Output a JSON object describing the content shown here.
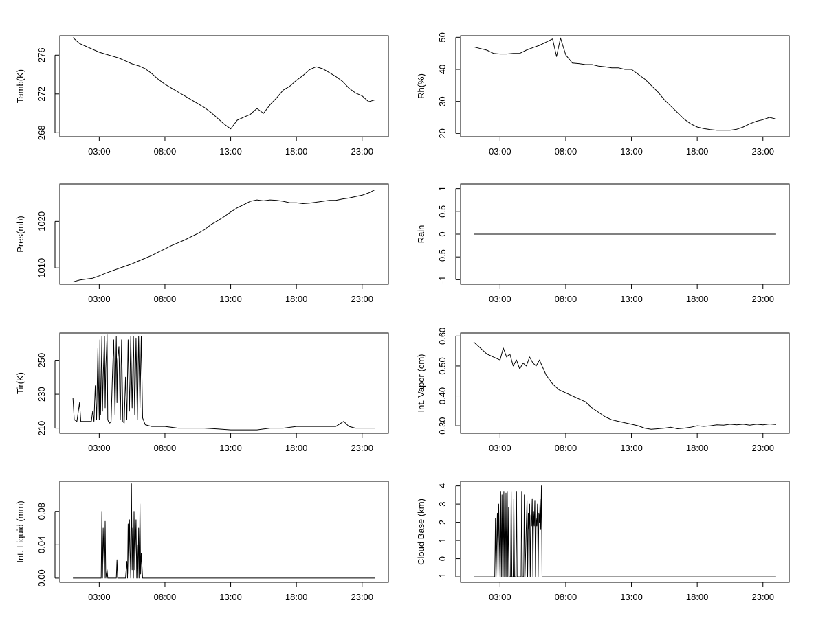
{
  "chart_data": [
    {
      "type": "line",
      "ylabel": "Tamb(K)",
      "ylim": [
        267.6,
        278.0
      ],
      "yticks": [
        268,
        272,
        276
      ],
      "x_tick_labels": [
        "03:00",
        "08:00",
        "13:00",
        "18:00",
        "23:00"
      ],
      "x_ticks": [
        3,
        8,
        13,
        18,
        23
      ],
      "xlim": [
        0,
        25
      ],
      "x": [
        1.0,
        1.5,
        2.0,
        2.5,
        3.0,
        3.5,
        4.0,
        4.5,
        5.0,
        5.5,
        6.0,
        6.5,
        7.0,
        7.5,
        8.0,
        8.5,
        9.0,
        9.5,
        10.0,
        10.5,
        11.0,
        11.5,
        12.0,
        12.5,
        13.0,
        13.5,
        14.0,
        14.5,
        15.0,
        15.5,
        16.0,
        16.5,
        17.0,
        17.5,
        18.0,
        18.5,
        19.0,
        19.5,
        20.0,
        20.5,
        21.0,
        21.5,
        22.0,
        22.5,
        23.0,
        23.5,
        24.0
      ],
      "y": [
        277.8,
        277.2,
        276.9,
        276.6,
        276.3,
        276.1,
        275.9,
        275.7,
        275.4,
        275.1,
        274.9,
        274.6,
        274.1,
        273.5,
        273.0,
        272.6,
        272.2,
        271.8,
        271.4,
        271.0,
        270.6,
        270.1,
        269.5,
        268.9,
        268.4,
        269.3,
        269.6,
        269.9,
        270.5,
        270.0,
        270.9,
        271.6,
        272.4,
        272.8,
        273.4,
        273.9,
        274.5,
        274.8,
        274.6,
        274.2,
        273.8,
        273.3,
        272.6,
        272.1,
        271.8,
        271.2,
        271.4
      ]
    },
    {
      "type": "line",
      "ylabel": "Rh(%)",
      "ylim": [
        19,
        50.5
      ],
      "yticks": [
        20,
        30,
        40,
        50
      ],
      "x_tick_labels": [
        "03:00",
        "08:00",
        "13:00",
        "18:00",
        "23:00"
      ],
      "x_ticks": [
        3,
        8,
        13,
        18,
        23
      ],
      "xlim": [
        0,
        25
      ],
      "x": [
        1.0,
        1.5,
        2.0,
        2.5,
        3.0,
        3.5,
        4.0,
        4.5,
        5.0,
        5.5,
        6.0,
        6.5,
        7.0,
        7.3,
        7.6,
        8.0,
        8.5,
        9.0,
        9.5,
        10.0,
        10.5,
        11.0,
        11.5,
        12.0,
        12.5,
        13.0,
        13.5,
        14.0,
        14.5,
        15.0,
        15.5,
        16.0,
        16.5,
        17.0,
        17.5,
        18.0,
        18.5,
        19.0,
        19.5,
        20.0,
        20.5,
        21.0,
        21.5,
        22.0,
        22.5,
        23.0,
        23.5,
        24.0
      ],
      "y": [
        47.0,
        46.5,
        46.0,
        45.0,
        44.8,
        44.8,
        45.0,
        45.0,
        46.0,
        46.8,
        47.5,
        48.5,
        49.5,
        44.0,
        49.8,
        44.5,
        42.0,
        41.8,
        41.5,
        41.5,
        41.0,
        40.8,
        40.5,
        40.5,
        40.0,
        40.0,
        38.5,
        37.0,
        35.0,
        33.0,
        30.5,
        28.5,
        26.5,
        24.5,
        23.0,
        22.0,
        21.5,
        21.2,
        21.0,
        21.0,
        21.0,
        21.3,
        22.0,
        23.0,
        23.8,
        24.3,
        25.0,
        24.5
      ]
    },
    {
      "type": "line",
      "ylabel": "Pres(mb)",
      "ylim": [
        1006.5,
        1028.0
      ],
      "yticks": [
        1010,
        1020
      ],
      "x_tick_labels": [
        "03:00",
        "08:00",
        "13:00",
        "18:00",
        "23:00"
      ],
      "x_ticks": [
        3,
        8,
        13,
        18,
        23
      ],
      "xlim": [
        0,
        25
      ],
      "x": [
        1.0,
        1.5,
        2.0,
        2.5,
        3.0,
        3.5,
        4.0,
        4.5,
        5.0,
        5.5,
        6.0,
        6.5,
        7.0,
        7.5,
        8.0,
        8.5,
        9.0,
        9.5,
        10.0,
        10.5,
        11.0,
        11.5,
        12.0,
        12.5,
        13.0,
        13.5,
        14.0,
        14.5,
        15.0,
        15.5,
        16.0,
        16.5,
        17.0,
        17.5,
        18.0,
        18.5,
        19.0,
        19.5,
        20.0,
        20.5,
        21.0,
        21.5,
        22.0,
        22.5,
        23.0,
        23.5,
        24.0
      ],
      "y": [
        1007.0,
        1007.4,
        1007.6,
        1007.8,
        1008.3,
        1008.9,
        1009.4,
        1009.9,
        1010.4,
        1010.9,
        1011.5,
        1012.1,
        1012.7,
        1013.4,
        1014.1,
        1014.8,
        1015.4,
        1016.0,
        1016.7,
        1017.4,
        1018.2,
        1019.3,
        1020.1,
        1021.0,
        1022.0,
        1022.9,
        1023.6,
        1024.3,
        1024.6,
        1024.4,
        1024.6,
        1024.5,
        1024.3,
        1024.0,
        1024.0,
        1023.8,
        1023.9,
        1024.1,
        1024.3,
        1024.5,
        1024.5,
        1024.8,
        1025.0,
        1025.3,
        1025.6,
        1026.1,
        1026.8
      ]
    },
    {
      "type": "line",
      "ylabel": "Rain",
      "ylim": [
        -1.1,
        1.1
      ],
      "yticks": [
        -1.0,
        -0.5,
        0.0,
        0.5,
        1.0
      ],
      "x_tick_labels": [
        "03:00",
        "08:00",
        "13:00",
        "18:00",
        "23:00"
      ],
      "x_ticks": [
        3,
        8,
        13,
        18,
        23
      ],
      "xlim": [
        0,
        25
      ],
      "x": [
        1.0,
        24.0
      ],
      "y": [
        0.0,
        0.0
      ]
    },
    {
      "type": "line",
      "ylabel": "Tir(K)",
      "ylim": [
        207,
        266
      ],
      "yticks": [
        210,
        230,
        250
      ],
      "x_tick_labels": [
        "03:00",
        "08:00",
        "13:00",
        "18:00",
        "23:00"
      ],
      "x_ticks": [
        3,
        8,
        13,
        18,
        23
      ],
      "xlim": [
        0,
        25
      ],
      "x": [
        1.0,
        1.1,
        1.3,
        1.5,
        1.6,
        1.8,
        2.0,
        2.2,
        2.4,
        2.5,
        2.6,
        2.7,
        2.8,
        2.9,
        3.0,
        3.05,
        3.1,
        3.2,
        3.25,
        3.3,
        3.4,
        3.45,
        3.5,
        3.6,
        3.65,
        3.7,
        3.8,
        3.9,
        4.0,
        4.1,
        4.2,
        4.3,
        4.35,
        4.4,
        4.5,
        4.6,
        4.7,
        4.8,
        4.9,
        5.0,
        5.1,
        5.2,
        5.3,
        5.4,
        5.5,
        5.6,
        5.7,
        5.8,
        5.9,
        6.0,
        6.1,
        6.2,
        6.3,
        6.5,
        7.0,
        7.5,
        8.0,
        9.0,
        10.0,
        11.0,
        12.0,
        13.0,
        14.0,
        15.0,
        16.0,
        17.0,
        18.0,
        19.0,
        20.0,
        21.0,
        21.6,
        22.0,
        22.5,
        23.0,
        24.0
      ],
      "y": [
        228,
        215,
        214,
        225,
        214,
        214,
        214,
        214,
        214,
        220,
        214,
        235,
        215,
        257,
        215,
        262,
        218,
        264,
        220,
        240,
        264,
        222,
        245,
        265,
        215,
        214,
        213,
        214,
        240,
        262,
        218,
        264,
        225,
        250,
        258,
        215,
        262,
        214,
        213,
        240,
        215,
        262,
        220,
        264,
        222,
        264,
        218,
        263,
        215,
        264,
        222,
        264,
        216,
        212,
        211,
        211,
        211,
        210,
        210,
        210,
        209.5,
        209,
        209,
        209,
        210,
        210,
        211,
        211,
        211,
        211,
        214,
        211,
        210,
        210,
        210
      ]
    },
    {
      "type": "line",
      "ylabel": "Int. Vapor (cm)",
      "ylim": [
        0.275,
        0.61
      ],
      "yticks": [
        0.3,
        0.4,
        0.5,
        0.6
      ],
      "ytick_labels": [
        "0.30",
        "0.40",
        "0.50",
        "0.60"
      ],
      "x_tick_labels": [
        "03:00",
        "08:00",
        "13:00",
        "18:00",
        "23:00"
      ],
      "x_ticks": [
        3,
        8,
        13,
        18,
        23
      ],
      "xlim": [
        0,
        25
      ],
      "x": [
        1.0,
        1.5,
        2.0,
        2.5,
        3.0,
        3.25,
        3.5,
        3.75,
        4.0,
        4.25,
        4.5,
        4.75,
        5.0,
        5.25,
        5.5,
        5.75,
        6.0,
        6.5,
        7.0,
        7.5,
        8.0,
        8.5,
        9.0,
        9.5,
        10.0,
        10.5,
        11.0,
        11.5,
        12.0,
        12.5,
        13.0,
        13.5,
        14.0,
        14.5,
        15.0,
        15.5,
        16.0,
        16.5,
        17.0,
        17.5,
        18.0,
        18.5,
        19.0,
        19.5,
        20.0,
        20.5,
        21.0,
        21.5,
        22.0,
        22.5,
        23.0,
        23.5,
        24.0
      ],
      "y": [
        0.58,
        0.56,
        0.54,
        0.53,
        0.52,
        0.56,
        0.53,
        0.54,
        0.5,
        0.52,
        0.49,
        0.51,
        0.5,
        0.53,
        0.51,
        0.5,
        0.52,
        0.47,
        0.44,
        0.42,
        0.41,
        0.4,
        0.39,
        0.38,
        0.36,
        0.345,
        0.33,
        0.32,
        0.315,
        0.31,
        0.305,
        0.3,
        0.292,
        0.288,
        0.29,
        0.292,
        0.295,
        0.29,
        0.292,
        0.295,
        0.3,
        0.298,
        0.3,
        0.303,
        0.302,
        0.305,
        0.303,
        0.305,
        0.302,
        0.305,
        0.303,
        0.306,
        0.304
      ]
    },
    {
      "type": "line",
      "ylabel": "Int. Liquid (mm)",
      "ylim": [
        -0.005,
        0.116
      ],
      "yticks": [
        0.0,
        0.04,
        0.08
      ],
      "ytick_labels": [
        "0.00",
        "0.04",
        "0.08"
      ],
      "x_tick_labels": [
        "03:00",
        "08:00",
        "13:00",
        "18:00",
        "23:00"
      ],
      "x_ticks": [
        3,
        8,
        13,
        18,
        23
      ],
      "xlim": [
        0,
        25
      ],
      "x": [
        1.0,
        2.8,
        3.15,
        3.2,
        3.25,
        3.3,
        3.4,
        3.45,
        3.5,
        3.6,
        3.65,
        3.7,
        4.0,
        4.3,
        4.35,
        4.4,
        5.0,
        5.1,
        5.15,
        5.2,
        5.25,
        5.3,
        5.4,
        5.45,
        5.5,
        5.55,
        5.6,
        5.65,
        5.7,
        5.8,
        5.85,
        5.9,
        5.95,
        6.0,
        6.05,
        6.1,
        6.15,
        6.2,
        6.3,
        24.0
      ],
      "y": [
        0.0,
        0.0,
        0.0,
        0.08,
        0.0,
        0.06,
        0.0,
        0.068,
        0.0,
        0.01,
        0.0,
        0.0,
        0.0,
        0.0,
        0.022,
        0.0,
        0.0,
        0.02,
        0.0,
        0.065,
        0.005,
        0.07,
        0.0,
        0.113,
        0.01,
        0.06,
        0.0,
        0.08,
        0.01,
        0.07,
        0.0,
        0.04,
        0.0,
        0.06,
        0.0,
        0.089,
        0.005,
        0.03,
        0.0,
        0.0
      ]
    },
    {
      "type": "line",
      "ylabel": "Cloud Base (km)",
      "ylim": [
        -1.3,
        4.25
      ],
      "yticks": [
        -1,
        0,
        1,
        2,
        3,
        4
      ],
      "x_tick_labels": [
        "03:00",
        "08:00",
        "13:00",
        "18:00",
        "23:00"
      ],
      "x_ticks": [
        3,
        8,
        13,
        18,
        23
      ],
      "xlim": [
        0,
        25
      ],
      "x": [
        1.0,
        2.6,
        2.65,
        2.7,
        2.8,
        2.85,
        2.9,
        3.0,
        3.05,
        3.1,
        3.15,
        3.2,
        3.25,
        3.3,
        3.35,
        3.4,
        3.45,
        3.5,
        3.55,
        3.6,
        3.65,
        3.7,
        3.8,
        3.85,
        3.9,
        4.0,
        4.05,
        4.1,
        4.2,
        4.25,
        4.3,
        4.4,
        4.5,
        4.6,
        4.65,
        4.7,
        4.8,
        4.85,
        4.9,
        5.0,
        5.05,
        5.1,
        5.15,
        5.2,
        5.25,
        5.3,
        5.35,
        5.4,
        5.45,
        5.5,
        5.55,
        5.6,
        5.65,
        5.7,
        5.75,
        5.8,
        5.85,
        5.9,
        5.95,
        6.0,
        6.05,
        6.1,
        6.15,
        6.2,
        6.3,
        24.0
      ],
      "y": [
        -1,
        -1,
        2.2,
        -1,
        2.5,
        -1,
        3.0,
        -1,
        3.7,
        -1,
        3.5,
        -1,
        3.7,
        -1,
        3.7,
        -1,
        3.6,
        -1,
        3.7,
        -1,
        2.8,
        -1,
        -1,
        3.7,
        -1,
        -1,
        3.3,
        -1,
        -1,
        3.7,
        -1,
        -1,
        -1,
        -1,
        3.7,
        -1,
        -1,
        3.5,
        -1,
        1.8,
        3.2,
        -1,
        2.5,
        1.6,
        3.0,
        -1,
        2.4,
        1.8,
        3.3,
        -1,
        2.6,
        1.8,
        3.2,
        -1,
        2.2,
        1.8,
        3.0,
        -1,
        2.5,
        2.0,
        3.3,
        1.6,
        4.0,
        -1,
        -1,
        -1
      ]
    }
  ]
}
